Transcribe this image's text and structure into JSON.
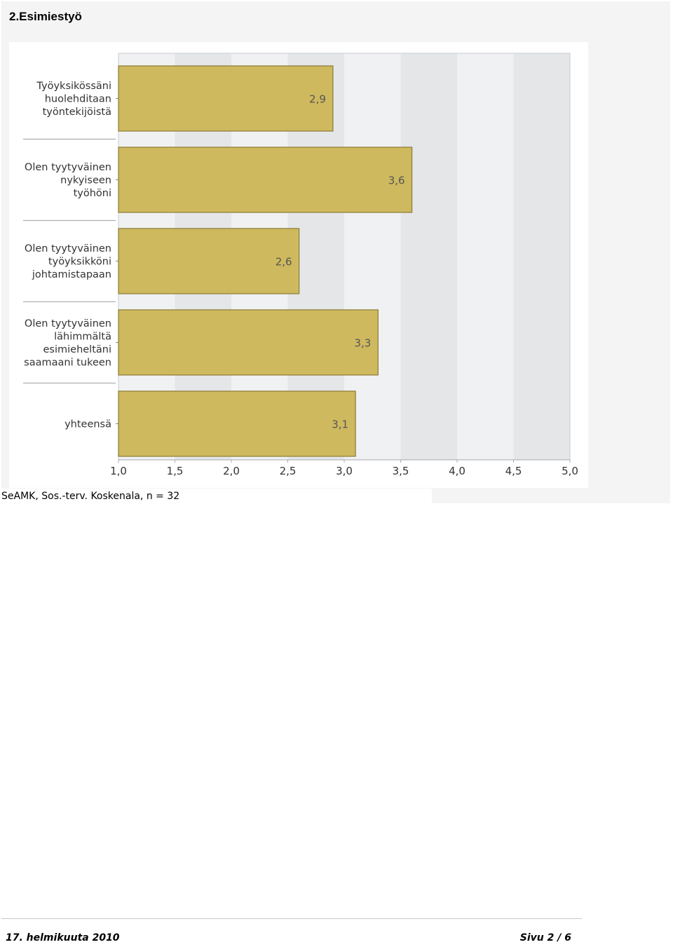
{
  "section_title": "2.Esimiestyö",
  "caption": "SeAMK, Sos.-terv. Koskenala, n = 32",
  "footer": {
    "date": "17. helmikuuta 2010",
    "page": "Sivu 2 / 6"
  },
  "colors": {
    "bar_fill": "#cfb95e",
    "bar_stroke": "#8a7a36",
    "band_light": "#f0f1f2",
    "band_dark": "#e4e6e8",
    "label_text": "#333333",
    "value_text": "#555555"
  },
  "chart_data": {
    "type": "bar",
    "orientation": "horizontal",
    "categories": [
      [
        "Työyksikössäni",
        "huolehditaan",
        "työntekijöistä"
      ],
      [
        "Olen tyytyväinen",
        "nykyiseen",
        "työhöni"
      ],
      [
        "Olen tyytyväinen",
        "työyksikköni",
        "johtamistapaan"
      ],
      [
        "Olen tyytyväinen",
        "lähimmältä",
        "esimieheltäni",
        "saamaani tukeen"
      ],
      [
        "yhteensä"
      ]
    ],
    "values": [
      2.9,
      3.6,
      2.6,
      3.3,
      3.1
    ],
    "value_labels": [
      "2,9",
      "3,6",
      "2,6",
      "3,3",
      "3,1"
    ],
    "xlim": [
      1.0,
      5.0
    ],
    "xticks": [
      1.0,
      1.5,
      2.0,
      2.5,
      3.0,
      3.5,
      4.0,
      4.5,
      5.0
    ],
    "xtick_labels": [
      "1,0",
      "1,5",
      "2,0",
      "2,5",
      "3,0",
      "3,5",
      "4,0",
      "4,5",
      "5,0"
    ],
    "grid": "alternating vertical bands",
    "legend": "none"
  }
}
